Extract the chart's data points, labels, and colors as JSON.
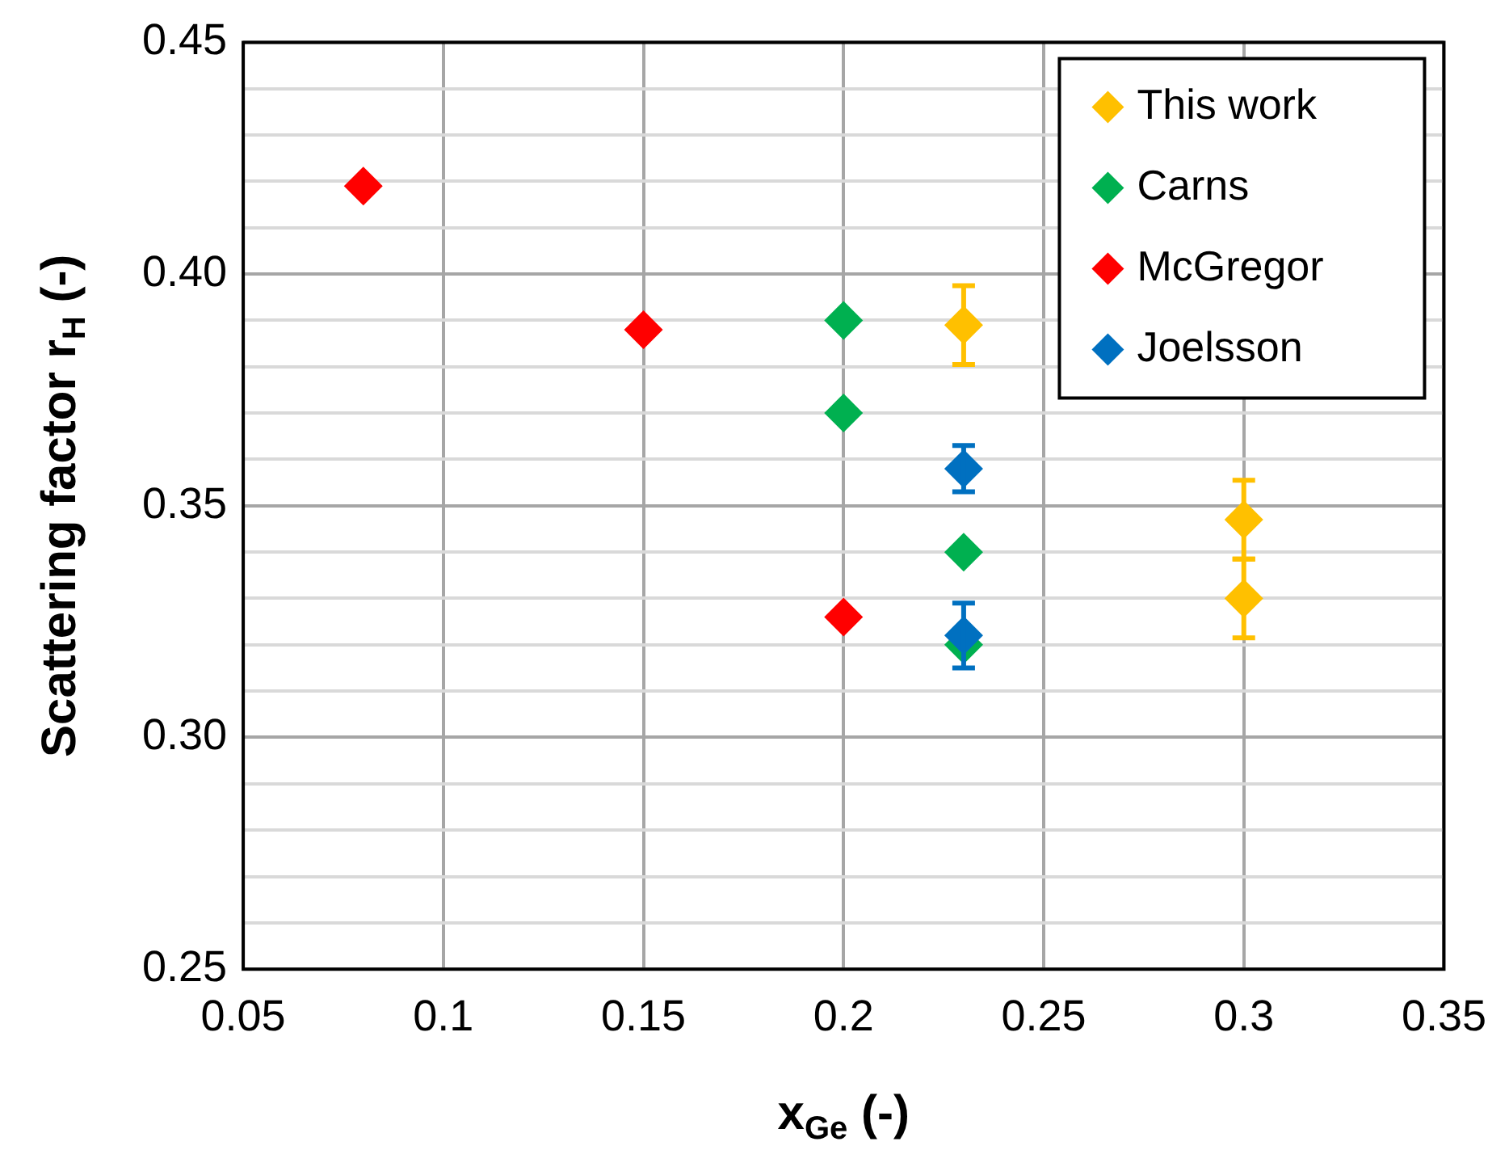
{
  "chart_data": {
    "type": "scatter",
    "xlabel": "x$_{Ge}$ (-)",
    "ylabel": "Scattering factor r$_{H}$ (-)",
    "xlim": [
      0.05,
      0.35
    ],
    "xticks": [
      0.05,
      0.1,
      0.15,
      0.2,
      0.25,
      0.3,
      0.35
    ],
    "ylim": [
      0.25,
      0.45
    ],
    "yticks": [
      {
        "value": 0.25,
        "label": "0.25"
      },
      {
        "value": 0.26,
        "label": null
      },
      {
        "value": 0.27,
        "label": null
      },
      {
        "value": 0.28,
        "label": null
      },
      {
        "value": 0.29,
        "label": null
      },
      {
        "value": 0.3,
        "label": "0.30"
      },
      {
        "value": 0.31,
        "label": null
      },
      {
        "value": 0.32,
        "label": null
      },
      {
        "value": 0.33,
        "label": null
      },
      {
        "value": 0.34,
        "label": null
      },
      {
        "value": 0.35,
        "label": "0.35"
      },
      {
        "value": 0.36,
        "label": null
      },
      {
        "value": 0.37,
        "label": null
      },
      {
        "value": 0.38,
        "label": null
      },
      {
        "value": 0.39,
        "label": null
      },
      {
        "value": 0.4,
        "label": "0.40"
      },
      {
        "value": 0.41,
        "label": null
      },
      {
        "value": 0.42,
        "label": null
      },
      {
        "value": 0.43,
        "label": null
      },
      {
        "value": 0.44,
        "label": null
      },
      {
        "value": 0.45,
        "label": "0.45"
      }
    ],
    "grid": true,
    "legend": "top right",
    "marker": "diamond",
    "series": [
      {
        "name": "This work",
        "color": "#ffc000",
        "x": [
          0.23,
          0.3,
          0.3
        ],
        "values": [
          0.389,
          0.347,
          0.33
        ],
        "errors": [
          0.0085,
          0.0085,
          0.0085
        ]
      },
      {
        "name": "Carns",
        "color": "#00b050",
        "x": [
          0.2,
          0.2,
          0.23,
          0.23
        ],
        "values": [
          0.39,
          0.37,
          0.34,
          0.32
        ]
      },
      {
        "name": "McGregor",
        "color": "#ff0000",
        "x": [
          0.08,
          0.15,
          0.2
        ],
        "values": [
          0.419,
          0.388,
          0.326
        ]
      },
      {
        "name": "Joelsson",
        "color": "#0070c0",
        "x": [
          0.23,
          0.23
        ],
        "values": [
          0.358,
          0.322
        ],
        "errors": [
          0.005,
          0.007
        ]
      }
    ]
  }
}
